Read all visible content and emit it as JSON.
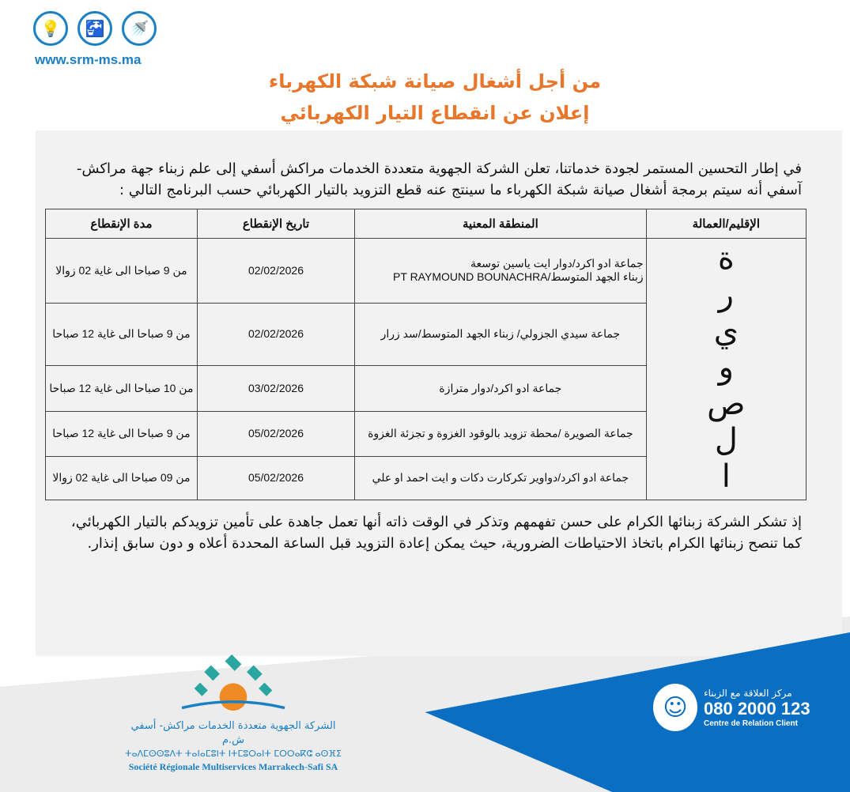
{
  "header": {
    "icons": [
      "lightbulb-icon",
      "water-tap-icon",
      "sanitation-icon"
    ],
    "website": "www.srm-ms.ma",
    "title_line1": "من أجل أشغال صيانة شبكة الكهرباء",
    "title_line2": "إعلان عن انقطاع التيار الكهربائي",
    "title_color": "#e8762b",
    "brand_color": "#1b7fc4"
  },
  "intro": "في إطار التحسين المستمر لجودة خدماتنا، تعلن الشركة الجهوية متعددة الخدمات مراكش أسفي إلى علم زبناء جهة مراكش- آسفي أنه سيتم برمجة أشغال صيانة شبكة الكهرباء ما سينتج عنه  قطع التزويد بالتيار الكهربائي حسب البرنامج التالي :",
  "table": {
    "headers": {
      "province": "الإقليم/العمالة",
      "area": "المنطقة المعنية",
      "date": "تاريخ الإنقطاع",
      "duration": "مدة الإنقطاع"
    },
    "province": "الصويرة",
    "rows": [
      {
        "area": "جماعة ادو اكرد/دوار ايت ياسين توسعة",
        "area2": "زبناء الجهد المتوسط/PT RAYMOUND BOUNACHRA",
        "date": "02/02/2026",
        "duration": "من 9 صباحا الى غاية 02 زوالا"
      },
      {
        "area": "جماعة سيدي الجزولي/  زبناء الجهد المتوسط/سد زرار",
        "area2": "",
        "date": "02/02/2026",
        "duration": "من 9 صباحا الى غاية 12 صباحا"
      },
      {
        "area": "جماعة ادو اكرد/دوار مترازة",
        "area2": "",
        "date": "03/02/2026",
        "duration": "من 10 صباحا الى غاية 12 صباحا"
      },
      {
        "area": "جماعة الصويرة /محطة تزويد بالوقود الغزوة و تجزئة الغزوة",
        "area2": "",
        "date": "05/02/2026",
        "duration": "من 9 صباحا الى غاية 12 صباحا"
      },
      {
        "area": "جماعة ادو اكرد/دواوير  تكركارت دكات و ايت احمد او  علي",
        "area2": "",
        "date": "05/02/2026",
        "duration": "من 09 صباحا الى غاية 02 زوالا"
      }
    ]
  },
  "closing": "إذ تشكر الشركة زبنائها الكرام على حسن تفهمهم وتذكر في الوقت ذاته أنها تعمل جاهدة على تأمين تزويدكم بالتيار الكهربائي، كما تنصح زبنائها الكرام باتخاذ الاحتياطات الضرورية، حيث يمكن إعادة التزويد قبل الساعة المحددة أعلاه و دون سابق إنذار.",
  "footer": {
    "company_ar": "الشركة الجهوية متعددة الخدمات مراكش- أسفي ش.م",
    "company_tifinagh": "ⵜⴰⴷⵎⵙⵙⵓⴷⵜ ⵜⴰⵏⴰⵎⵓⵏⵜ ⵏⵜⵎⵓⵔⴰⵏⵜ ⵎⵔⵔⴰⴽⵛ ⴰⵙⴼⵉ",
    "company_fr": "Société Régionale Multiservices Marrakech-Safi SA",
    "hotline_label_ar": "مركز العلاقة مع الزبناء",
    "hotline_number": "080 2000 123",
    "hotline_label_fr": "Centre de Relation Client",
    "accent_blue": "#0a6fc2"
  }
}
